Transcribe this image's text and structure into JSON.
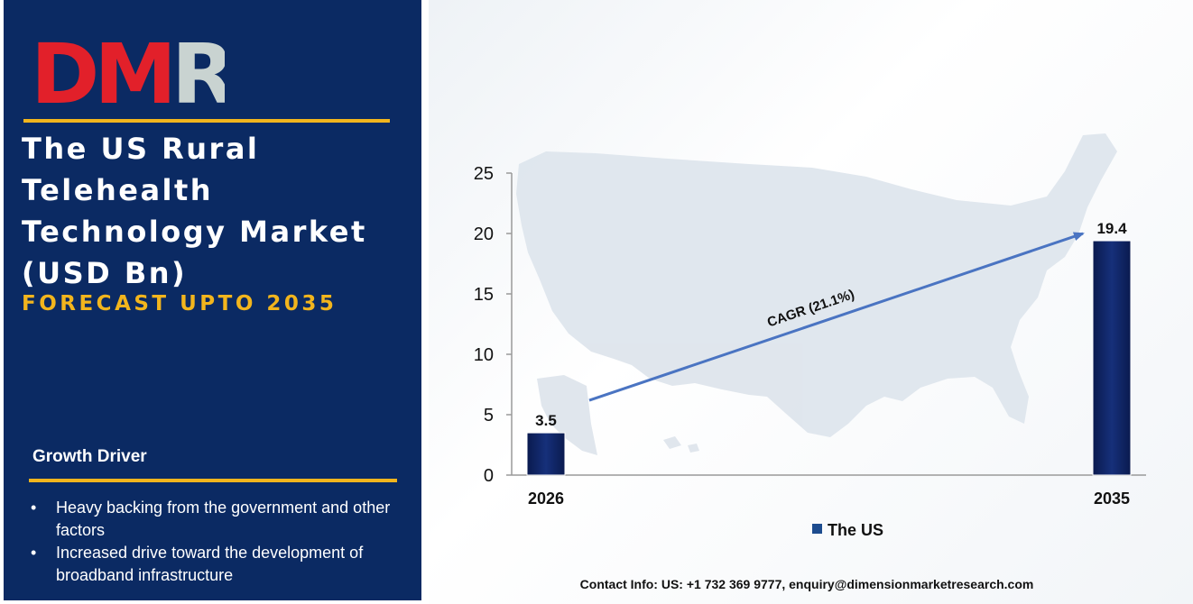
{
  "brand": {
    "logo_text": "DMR",
    "logo_colors": {
      "D": "#e2202a",
      "M": "#e2202a",
      "R": "#c9d3d1"
    }
  },
  "title_lines": [
    "The US Rural",
    "Telehealth",
    "Technology Market",
    "(USD Bn)"
  ],
  "subtitle": "FORECAST UPTO 2035",
  "growth_driver": {
    "heading": "Growth Driver",
    "items": [
      "Heavy backing from the government and other factors",
      "Increased drive toward the development of broadband infrastructure"
    ]
  },
  "contact": "Contact Info: US: +1 732 369 9777, enquiry@dimensionmarketresearch.com",
  "colors": {
    "panel": "#0b2a63",
    "accent": "#f2b51d",
    "bar": "#0d1f5c",
    "arrow": "#4a74c2"
  },
  "chart_data": {
    "type": "bar",
    "categories": [
      "2026",
      "2035"
    ],
    "series": [
      {
        "name": "The US",
        "values": [
          3.5,
          19.4
        ]
      }
    ],
    "data_labels": [
      "3.5",
      "19.4"
    ],
    "y_ticks": [
      "0",
      "5",
      "10",
      "15",
      "20",
      "25"
    ],
    "ylim": [
      0,
      25
    ],
    "annotation": "CAGR (21.1%)",
    "legend": "bottom",
    "grid": false,
    "background": "us-map-icon"
  }
}
